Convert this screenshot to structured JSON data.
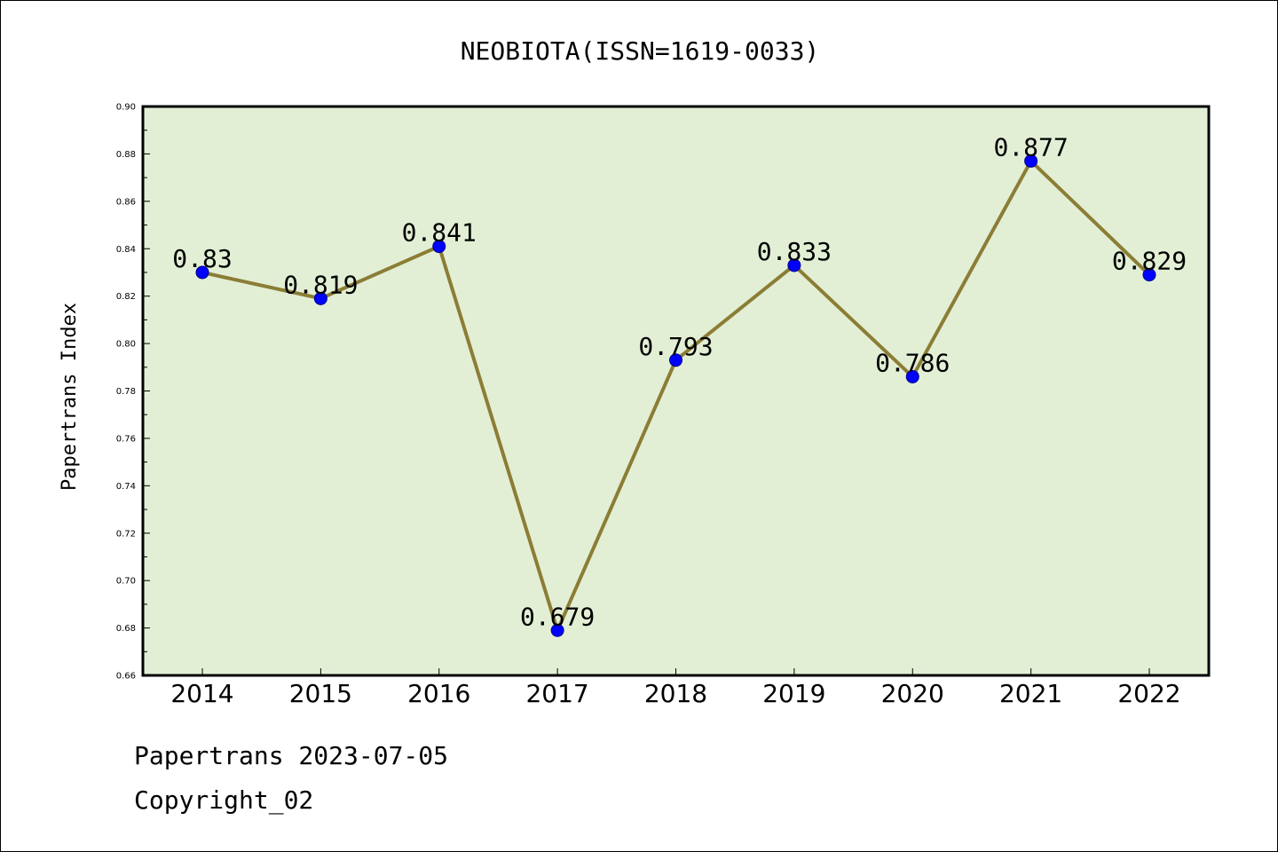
{
  "title": "NEOBIOTA(ISSN=1619-0033)",
  "footer": {
    "line1": "Papertrans 2023-07-05",
    "line2": "Copyright_02"
  },
  "colors": {
    "plot_background": "#e2efd5",
    "line": "#8b7d35",
    "marker": "#0000ff",
    "axes": "#000000"
  },
  "chart_data": {
    "type": "line",
    "title": "NEOBIOTA(ISSN=1619-0033)",
    "xlabel": "",
    "ylabel": "Papertrans Index",
    "categories": [
      "2014",
      "2015",
      "2016",
      "2017",
      "2018",
      "2019",
      "2020",
      "2021",
      "2022"
    ],
    "values": [
      0.83,
      0.819,
      0.841,
      0.679,
      0.793,
      0.833,
      0.786,
      0.877,
      0.829
    ],
    "data_labels": [
      "0.83",
      "0.819",
      "0.841",
      "0.679",
      "0.793",
      "0.833",
      "0.786",
      "0.877",
      "0.829"
    ],
    "ylim": [
      0.66,
      0.9
    ],
    "yticks": [
      "0.66",
      "0.68",
      "0.70",
      "0.72",
      "0.74",
      "0.76",
      "0.78",
      "0.80",
      "0.82",
      "0.84",
      "0.86",
      "0.88",
      "0.90"
    ],
    "grid": false,
    "legend": "none"
  }
}
